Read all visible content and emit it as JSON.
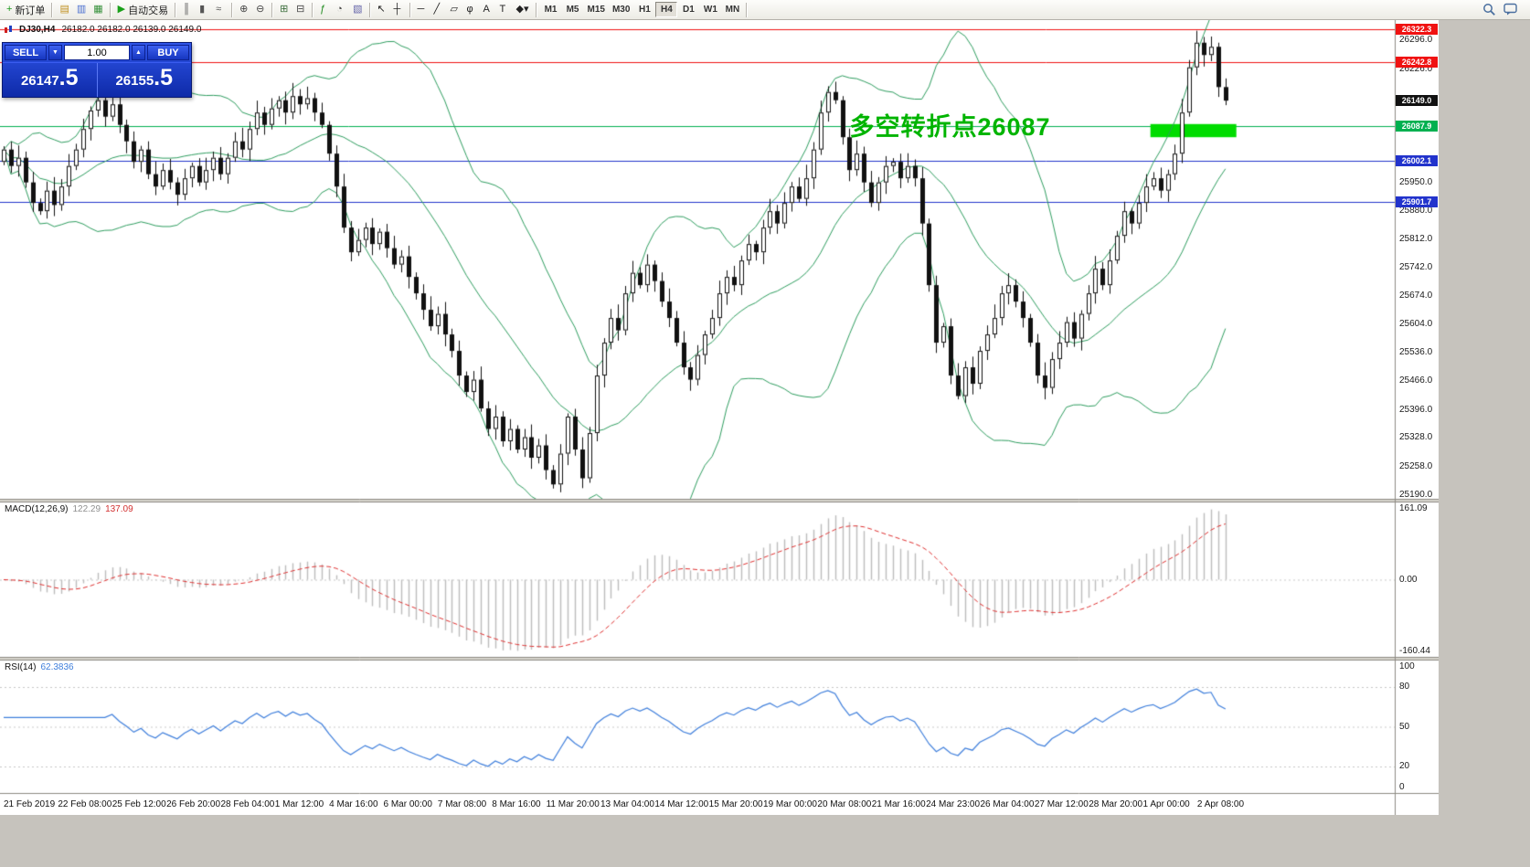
{
  "app": {
    "workspace_bg": "#c6c3bd",
    "chart_bg": "#ffffff"
  },
  "toolbar": {
    "items": [
      {
        "name": "new-order-button",
        "label": "新订单",
        "glyph": "+",
        "glyph_color": "#1d9a1d"
      },
      {
        "name": "separator"
      },
      {
        "name": "market-watch-button",
        "glyph": "▤",
        "glyph_color": "#c09020"
      },
      {
        "name": "navigator-button",
        "glyph": "▥",
        "glyph_color": "#4a6fd0"
      },
      {
        "name": "terminal-button",
        "glyph": "▦",
        "glyph_color": "#35903a"
      },
      {
        "name": "separator"
      },
      {
        "name": "auto-trading-button",
        "label": "自动交易",
        "glyph": "▶",
        "glyph_color": "#19a019"
      },
      {
        "name": "separator"
      },
      {
        "name": "chart-bars-button",
        "glyph": "║",
        "glyph_color": "#555555"
      },
      {
        "name": "chart-candles-button",
        "glyph": "▮",
        "glyph_color": "#555555"
      },
      {
        "name": "chart-line-button",
        "glyph": "≈",
        "glyph_color": "#555555"
      },
      {
        "name": "separator"
      },
      {
        "name": "zoom-in-button",
        "glyph": "⊕",
        "glyph_color": "#444444"
      },
      {
        "name": "zoom-out-button",
        "glyph": "⊖",
        "glyph_color": "#444444"
      },
      {
        "name": "separator"
      },
      {
        "name": "tile-windows-button",
        "glyph": "⊞",
        "glyph_color": "#3c6e3c"
      },
      {
        "name": "auto-arrange-button",
        "glyph": "⊟",
        "glyph_color": "#444444"
      },
      {
        "name": "separator"
      },
      {
        "name": "add-indicator-button",
        "glyph": "ƒ",
        "glyph_color": "#1d8a1d"
      },
      {
        "name": "periods-button",
        "glyph": "◔",
        "glyph_color": "#444444"
      },
      {
        "name": "template-button",
        "glyph": "▧",
        "glyph_color": "#6666aa"
      },
      {
        "name": "separator"
      },
      {
        "name": "cursor-button",
        "glyph": "↖",
        "glyph_color": "#222222"
      },
      {
        "name": "crosshair-button",
        "glyph": "┼",
        "glyph_color": "#222222"
      },
      {
        "name": "separator"
      },
      {
        "name": "horizontal-line-button",
        "glyph": "─",
        "glyph_color": "#222222"
      },
      {
        "name": "trendline-button",
        "glyph": "╱",
        "glyph_color": "#222222"
      },
      {
        "name": "channel-button",
        "glyph": "▱",
        "glyph_color": "#222222"
      },
      {
        "name": "fibonacci-button",
        "glyph": "φ",
        "glyph_color": "#222222"
      },
      {
        "name": "text-button",
        "glyph": "A",
        "glyph_color": "#222222"
      },
      {
        "name": "label-button",
        "glyph": "T",
        "glyph_color": "#222222"
      },
      {
        "name": "shapes-button",
        "glyph": "◆▾",
        "glyph_color": "#222222"
      },
      {
        "name": "separator"
      }
    ],
    "timeframes": [
      "M1",
      "M5",
      "M15",
      "M30",
      "H1",
      "H4",
      "D1",
      "W1",
      "MN"
    ],
    "active_timeframe": "H4"
  },
  "order_panel": {
    "sell_label": "SELL",
    "buy_label": "BUY",
    "volume": "1.00",
    "volume_down_glyph": "▼",
    "volume_up_glyph": "▲",
    "sell_price_main": "26147",
    "sell_price_pips": ".5",
    "buy_price_main": "26155",
    "buy_price_pips": ".5"
  },
  "chart_header": {
    "symbol": "DJ30,H4",
    "ohlc": "26182.0 26182.0 26139.0 26149.0"
  },
  "annotation": {
    "text": "多空转折点26087",
    "color": "#00b400"
  },
  "macd_panel": {
    "name": "MACD(12,26,9)",
    "main_value": "122.29",
    "signal_value": "137.09",
    "ticks": [
      "161.09",
      "0.00",
      "-160.44"
    ],
    "tick_values": [
      161.09,
      0,
      -160.44
    ],
    "range": [
      -165,
      165
    ],
    "histogram_color": "#bdbdbd",
    "signal_color": "#e03030"
  },
  "rsi_panel": {
    "name": "RSI(14)",
    "value": "62.3836",
    "ticks": [
      "100",
      "80",
      "50",
      "20",
      "0"
    ],
    "tick_values": [
      100,
      80,
      50,
      20,
      0
    ],
    "levels": [
      80,
      50,
      20
    ],
    "range": [
      0,
      100
    ],
    "line_color": "#3f7fdc"
  },
  "price_axis": {
    "ticks": [
      "26296.0",
      "26226.0",
      "25950.0",
      "25880.0",
      "25812.0",
      "25742.0",
      "25674.0",
      "25604.0",
      "25536.0",
      "25466.0",
      "25396.0",
      "25328.0",
      "25258.0",
      "25190.0"
    ],
    "tick_values": [
      26296.0,
      26226.0,
      25950.0,
      25880.0,
      25812.0,
      25742.0,
      25674.0,
      25604.0,
      25536.0,
      25466.0,
      25396.0,
      25328.0,
      25258.0,
      25190.0
    ]
  },
  "levels": [
    {
      "label": "26322.3",
      "value": 26322.3,
      "color": "#f01212"
    },
    {
      "label": "26242.8",
      "value": 26242.8,
      "color": "#f01212"
    },
    {
      "label": "26087.9",
      "value": 26087.9,
      "color": "#00b050"
    },
    {
      "label": "26002.1",
      "value": 26002.1,
      "color": "#2233cc"
    },
    {
      "label": "25901.7",
      "value": 25901.7,
      "color": "#2233cc"
    }
  ],
  "current_price": {
    "label": "26149.0",
    "value": 26149.0,
    "color": "#111111"
  },
  "time_axis": {
    "labels": [
      "21 Feb 2019",
      "22 Feb 08:00",
      "25 Feb 12:00",
      "26 Feb 20:00",
      "28 Feb 04:00",
      "1 Mar 12:00",
      "4 Mar 16:00",
      "6 Mar 00:00",
      "7 Mar 08:00",
      "8 Mar 16:00",
      "11 Mar 20:00",
      "13 Mar 04:00",
      "14 Mar 12:00",
      "15 Mar 20:00",
      "19 Mar 00:00",
      "20 Mar 08:00",
      "21 Mar 16:00",
      "24 Mar 23:00",
      "26 Mar 04:00",
      "27 Mar 12:00",
      "28 Mar 20:00",
      "1 Apr 00:00",
      "2 Apr 08:00"
    ]
  },
  "chart_data": {
    "type": "candlestick",
    "symbol": "DJ30",
    "timeframe": "H4",
    "last_bar": {
      "open": 26182.0,
      "high": 26182.0,
      "low": 26139.0,
      "close": 26149.0
    },
    "ylim": [
      25180,
      26345
    ],
    "closes": [
      26030,
      25990,
      26010,
      25950,
      25900,
      25880,
      25930,
      25895,
      25940,
      25990,
      26030,
      26080,
      26125,
      26150,
      26110,
      26140,
      26090,
      26050,
      26000,
      26030,
      25970,
      25940,
      25980,
      25950,
      25920,
      25960,
      25990,
      25950,
      25980,
      26010,
      25970,
      26010,
      26050,
      26030,
      26080,
      26120,
      26090,
      26130,
      26150,
      26120,
      26160,
      26140,
      26155,
      26120,
      26090,
      26020,
      25940,
      25840,
      25780,
      25810,
      25840,
      25800,
      25830,
      25790,
      25750,
      25770,
      25720,
      25680,
      25640,
      25600,
      25630,
      25580,
      25540,
      25480,
      25440,
      25470,
      25400,
      25350,
      25380,
      25320,
      25350,
      25300,
      25330,
      25280,
      25310,
      25250,
      25215,
      25290,
      25380,
      25300,
      25230,
      25340,
      25480,
      25560,
      25620,
      25590,
      25680,
      25730,
      25700,
      25750,
      25710,
      25660,
      25620,
      25560,
      25500,
      25470,
      25530,
      25580,
      25620,
      25680,
      25720,
      25700,
      25760,
      25800,
      25780,
      25840,
      25880,
      25850,
      25900,
      25940,
      25910,
      25960,
      26030,
      26120,
      26170,
      26150,
      26060,
      25980,
      26020,
      25950,
      25900,
      25950,
      25990,
      26000,
      25960,
      25990,
      25960,
      25850,
      25700,
      25560,
      25600,
      25480,
      25430,
      25500,
      25460,
      25540,
      25580,
      25620,
      25680,
      25700,
      25660,
      25620,
      25560,
      25480,
      25450,
      25520,
      25560,
      25610,
      25570,
      25630,
      25680,
      25740,
      25700,
      25760,
      25820,
      25880,
      25850,
      25900,
      25940,
      25960,
      25930,
      25970,
      26020,
      26120,
      26230,
      26290,
      26260,
      26280,
      26182,
      26149
    ],
    "indicators": {
      "bollinger": {
        "period": 20,
        "deviation": 2,
        "color": "#2f9e60"
      },
      "macd": {
        "fast": 12,
        "slow": 26,
        "signal": 9
      },
      "rsi": {
        "period": 14
      }
    },
    "highlight_rect": {
      "from_index": 159,
      "to_index": 170,
      "price_top": 26092,
      "price_bottom": 26060,
      "color": "#00dc00"
    },
    "annotation_anchor": {
      "index": 117,
      "price": 26098
    }
  }
}
